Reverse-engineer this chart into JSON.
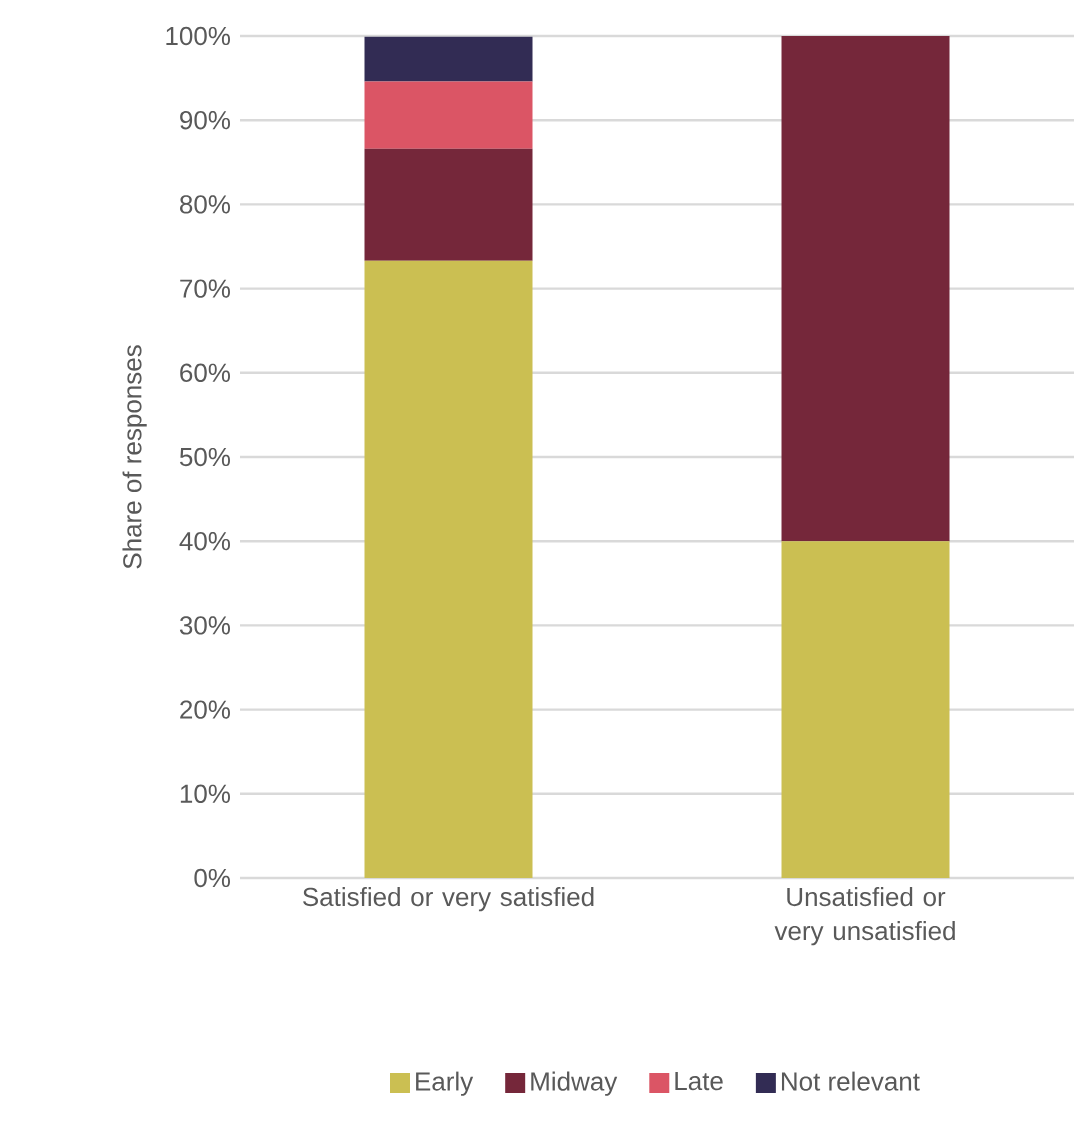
{
  "chart_data": {
    "type": "bar",
    "stacked": true,
    "ylabel": "Share of responses",
    "categories": [
      "Satisfied or very satisfied",
      "Unsatisfied or very unsatisfied"
    ],
    "series": [
      {
        "name": "Early",
        "color": "#cbbf52",
        "values": [
          73.3,
          40
        ]
      },
      {
        "name": "Midway",
        "color": "#75273a",
        "values": [
          13.3,
          60
        ]
      },
      {
        "name": "Late",
        "color": "#db5565",
        "values": [
          8,
          0
        ]
      },
      {
        "name": "Not relevant",
        "color": "#322c54",
        "values": [
          5.3,
          0
        ]
      }
    ],
    "ylim": [
      0,
      100
    ],
    "yticks": [
      {
        "value": 0,
        "label": "0%"
      },
      {
        "value": 10,
        "label": "10%"
      },
      {
        "value": 20,
        "label": "20%"
      },
      {
        "value": 30,
        "label": "30%"
      },
      {
        "value": 40,
        "label": "40%"
      },
      {
        "value": 50,
        "label": "50%"
      },
      {
        "value": 60,
        "label": "60%"
      },
      {
        "value": 70,
        "label": "70%"
      },
      {
        "value": 80,
        "label": "80%"
      },
      {
        "value": 90,
        "label": "90%"
      },
      {
        "value": 100,
        "label": "100%"
      }
    ],
    "grid": "y",
    "legend": "bottom"
  }
}
